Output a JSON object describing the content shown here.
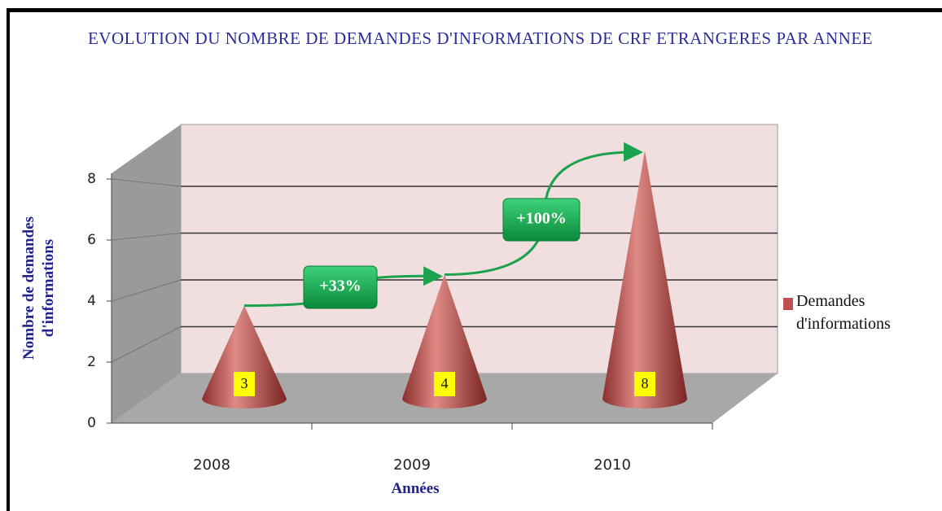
{
  "chart_data": {
    "type": "cone",
    "title": "EVOLUTION DU NOMBRE DE DEMANDES D'INFORMATIONS  DE CRF ETRANGERES PAR ANNEE",
    "y_label": "Nombre de demandes d'informations",
    "x_label": "Années",
    "categories": [
      "2008",
      "2009",
      "2010"
    ],
    "series": [
      {
        "name": "Demandes d'informations",
        "color": "#c0504d",
        "values": [
          3,
          4,
          8
        ]
      }
    ],
    "ylim": [
      0,
      8
    ],
    "yticks": [
      0,
      2,
      4,
      6,
      8
    ],
    "grid": true,
    "legend": "right",
    "annotations": [
      "+33%",
      "+100%"
    ]
  }
}
